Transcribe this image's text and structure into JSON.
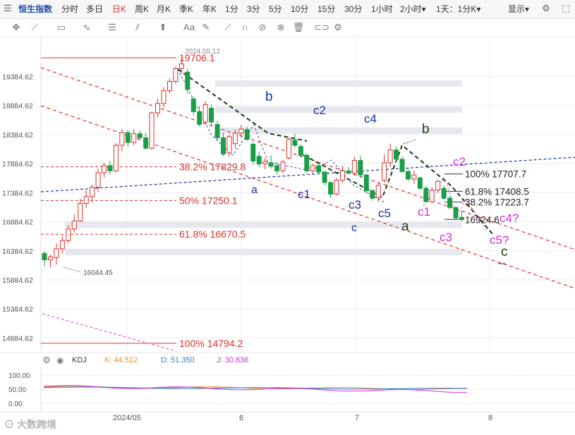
{
  "toolbar": {
    "index_name": "恒生指数",
    "periods": [
      "分时",
      "多日",
      "日K",
      "周K",
      "月K",
      "季K",
      "年K",
      "1分",
      "3分",
      "5分",
      "10分",
      "15分",
      "30分",
      "1小时",
      "2小时▾",
      "1天：1分K▾"
    ],
    "active_period": "日K",
    "display_label": "显示▾",
    "colors": {
      "active": "#d9312a"
    }
  },
  "draw_tools": [
    "crosshair-icon",
    "trendline-icon",
    "rect-tool-icon",
    "wave-tool-icon",
    "text-list-icon",
    "channel-icon",
    "arrow-up-icon",
    "text-aa-icon",
    "pen-icon",
    "magnet-icon",
    "lock-icon",
    "eye-off-icon",
    "trash-icon",
    "link-icon",
    "settings-icon"
  ],
  "draw_tool_glyphs": {
    "aa": "Aa"
  },
  "chart_data": {
    "type": "candlestick",
    "ylim": [
      14634.62,
      20070
    ],
    "y_ticks": [
      "19384.62",
      "18884.62",
      "18384.62",
      "17884.62",
      "17384.62",
      "16884.62",
      "16384.62",
      "15884.62",
      "15384.62",
      "14884.62"
    ],
    "y_tick_values": [
      19384.62,
      18884.62,
      18384.62,
      17884.62,
      17384.62,
      16884.62,
      16384.62,
      15884.62,
      15384.62,
      14884.62
    ],
    "x_labels": [
      "2024/05",
      "6",
      "7",
      "8"
    ],
    "x_label_index": [
      6,
      18,
      28,
      40
    ],
    "max_label": "19706.1",
    "max_date_label": "2024.05.12",
    "min_label": "16044.45",
    "last_label": "16924.6",
    "candles": [
      {
        "o": 16340,
        "h": 16380,
        "l": 16120,
        "c": 16230
      },
      {
        "o": 16230,
        "h": 16320,
        "l": 16100,
        "c": 16280
      },
      {
        "o": 16270,
        "h": 16510,
        "l": 16150,
        "c": 16420
      },
      {
        "o": 16420,
        "h": 16650,
        "l": 16340,
        "c": 16560
      },
      {
        "o": 16560,
        "h": 16820,
        "l": 16520,
        "c": 16760
      },
      {
        "o": 16760,
        "h": 17010,
        "l": 16700,
        "c": 16900
      },
      {
        "o": 16900,
        "h": 17280,
        "l": 16880,
        "c": 17200
      },
      {
        "o": 17200,
        "h": 17430,
        "l": 17120,
        "c": 17320
      },
      {
        "o": 17320,
        "h": 17520,
        "l": 17220,
        "c": 17480
      },
      {
        "o": 17480,
        "h": 17800,
        "l": 17400,
        "c": 17730
      },
      {
        "o": 17730,
        "h": 17900,
        "l": 17650,
        "c": 17850
      },
      {
        "o": 17850,
        "h": 17930,
        "l": 17700,
        "c": 17760
      },
      {
        "o": 17760,
        "h": 18240,
        "l": 17740,
        "c": 18200
      },
      {
        "o": 18200,
        "h": 18480,
        "l": 18100,
        "c": 18420
      },
      {
        "o": 18420,
        "h": 18460,
        "l": 18180,
        "c": 18250
      },
      {
        "o": 18250,
        "h": 18480,
        "l": 18200,
        "c": 18400
      },
      {
        "o": 18400,
        "h": 18460,
        "l": 18280,
        "c": 18330
      },
      {
        "o": 18330,
        "h": 18420,
        "l": 18130,
        "c": 18150
      },
      {
        "o": 18150,
        "h": 18780,
        "l": 18120,
        "c": 18760
      },
      {
        "o": 18760,
        "h": 19000,
        "l": 18680,
        "c": 18920
      },
      {
        "o": 18920,
        "h": 19200,
        "l": 18850,
        "c": 19140
      },
      {
        "o": 19140,
        "h": 19350,
        "l": 19090,
        "c": 19300
      },
      {
        "o": 19300,
        "h": 19560,
        "l": 19260,
        "c": 19520
      },
      {
        "o": 19520,
        "h": 19706,
        "l": 19430,
        "c": 19600
      },
      {
        "o": 19460,
        "h": 19520,
        "l": 19090,
        "c": 19160
      },
      {
        "o": 19000,
        "h": 19040,
        "l": 18720,
        "c": 18780
      },
      {
        "o": 18780,
        "h": 18880,
        "l": 18520,
        "c": 18560
      },
      {
        "o": 18600,
        "h": 18960,
        "l": 18560,
        "c": 18900
      },
      {
        "o": 18840,
        "h": 18900,
        "l": 18540,
        "c": 18600
      },
      {
        "o": 18560,
        "h": 18620,
        "l": 18280,
        "c": 18330
      },
      {
        "o": 18330,
        "h": 18420,
        "l": 18010,
        "c": 18050
      },
      {
        "o": 18070,
        "h": 18390,
        "l": 18000,
        "c": 18350
      },
      {
        "o": 18230,
        "h": 18470,
        "l": 18150,
        "c": 18410
      },
      {
        "o": 18410,
        "h": 18550,
        "l": 18330,
        "c": 18480
      },
      {
        "o": 18470,
        "h": 18520,
        "l": 18280,
        "c": 18300
      },
      {
        "o": 18220,
        "h": 18260,
        "l": 17870,
        "c": 17930
      },
      {
        "o": 18010,
        "h": 18090,
        "l": 17820,
        "c": 17880
      },
      {
        "o": 17880,
        "h": 17980,
        "l": 17790,
        "c": 17920
      },
      {
        "o": 17900,
        "h": 18030,
        "l": 17800,
        "c": 17840
      },
      {
        "o": 17850,
        "h": 17920,
        "l": 17700,
        "c": 17760
      },
      {
        "o": 17760,
        "h": 17950,
        "l": 17720,
        "c": 17910
      },
      {
        "o": 17980,
        "h": 18330,
        "l": 17960,
        "c": 18300
      },
      {
        "o": 18290,
        "h": 18400,
        "l": 18160,
        "c": 18200
      },
      {
        "o": 18180,
        "h": 18210,
        "l": 17990,
        "c": 18030
      },
      {
        "o": 18030,
        "h": 18060,
        "l": 17720,
        "c": 17760
      },
      {
        "o": 17760,
        "h": 17880,
        "l": 17700,
        "c": 17850
      },
      {
        "o": 17850,
        "h": 17900,
        "l": 17700,
        "c": 17740
      },
      {
        "o": 17740,
        "h": 17770,
        "l": 17510,
        "c": 17560
      },
      {
        "o": 17560,
        "h": 17580,
        "l": 17300,
        "c": 17360
      },
      {
        "o": 17360,
        "h": 17640,
        "l": 17340,
        "c": 17600
      },
      {
        "o": 17600,
        "h": 17850,
        "l": 17560,
        "c": 17760
      },
      {
        "o": 17760,
        "h": 17830,
        "l": 17700,
        "c": 17720
      },
      {
        "o": 17720,
        "h": 18000,
        "l": 17680,
        "c": 17940
      },
      {
        "o": 17940,
        "h": 18020,
        "l": 17640,
        "c": 17690
      },
      {
        "o": 17690,
        "h": 17710,
        "l": 17370,
        "c": 17420
      },
      {
        "o": 17420,
        "h": 17450,
        "l": 17250,
        "c": 17290
      },
      {
        "o": 17300,
        "h": 17560,
        "l": 17230,
        "c": 17510
      },
      {
        "o": 17600,
        "h": 18050,
        "l": 17560,
        "c": 17900
      },
      {
        "o": 17900,
        "h": 18230,
        "l": 17830,
        "c": 18120
      },
      {
        "o": 18120,
        "h": 18180,
        "l": 17900,
        "c": 17960
      },
      {
        "o": 17960,
        "h": 18010,
        "l": 17720,
        "c": 17750
      },
      {
        "o": 17750,
        "h": 17800,
        "l": 17590,
        "c": 17620
      },
      {
        "o": 17620,
        "h": 17760,
        "l": 17540,
        "c": 17690
      },
      {
        "o": 17640,
        "h": 17660,
        "l": 17430,
        "c": 17460
      },
      {
        "o": 17460,
        "h": 17500,
        "l": 17210,
        "c": 17230
      },
      {
        "o": 17230,
        "h": 17480,
        "l": 17200,
        "c": 17430
      },
      {
        "o": 17430,
        "h": 17610,
        "l": 17380,
        "c": 17580
      },
      {
        "o": 17460,
        "h": 17510,
        "l": 17260,
        "c": 17290
      },
      {
        "o": 17290,
        "h": 17330,
        "l": 17100,
        "c": 17130
      },
      {
        "o": 17130,
        "h": 17150,
        "l": 16930,
        "c": 16950
      },
      {
        "o": 16960,
        "h": 17080,
        "l": 16900,
        "c": 16925
      }
    ],
    "fib_left": [
      {
        "label": "19706.1",
        "value": 19706.1,
        "style": "solid"
      },
      {
        "label": "38.2% 17829.8",
        "value": 17829.8,
        "style": "dash"
      },
      {
        "label": "50% 17250.1",
        "value": 17250.1,
        "style": "dash"
      },
      {
        "label": "61.8% 16670.5",
        "value": 16670.5,
        "style": "dash"
      },
      {
        "label": "100% 14794.2",
        "value": 14794.2,
        "style": "solid"
      }
    ],
    "fib_right": [
      {
        "label": "100% 17707.7",
        "value": 17707.7
      },
      {
        "label": "61.8% 17408.5",
        "value": 17408.5
      },
      {
        "label": "38.2% 17223.7",
        "value": 17223.7
      },
      {
        "label": "16924.6",
        "value": 16924.6
      }
    ],
    "zones": [
      19270,
      18820,
      18460,
      16840,
      16370
    ],
    "wave_labels": [
      {
        "text": "b",
        "color": "#1f2fa6"
      },
      {
        "text": "c2",
        "color": "#1f2fa6"
      },
      {
        "text": "c4",
        "color": "#1f2fa6"
      },
      {
        "text": "b",
        "color": "#1d3a12"
      },
      {
        "text": "a",
        "color": "#1f2fa6"
      },
      {
        "text": "c1",
        "color": "#1f2fa6"
      },
      {
        "text": "c3",
        "color": "#1f2fa6"
      },
      {
        "text": "c5",
        "color": "#1f2fa6"
      },
      {
        "text": "c",
        "color": "#1f2fa6"
      },
      {
        "text": "a",
        "color": "#1d3a12"
      },
      {
        "text": "c1",
        "color": "#d62bd6"
      },
      {
        "text": "c2",
        "color": "#d62bd6"
      },
      {
        "text": "c3",
        "color": "#d62bd6"
      },
      {
        "text": "c4?",
        "color": "#d62bd6"
      },
      {
        "text": "c5?",
        "color": "#d62bd6"
      },
      {
        "text": "c",
        "color": "#1d3a12"
      }
    ],
    "colors": {
      "up": "#d9312a",
      "down": "#1a9e48",
      "fib": "#d9312a",
      "channel_red": "#d9312a",
      "blue_dash": "#1f2fa6",
      "magenta": "#e23fd8",
      "zone": "#e6e8ee",
      "axis_text": "#555555",
      "grid": "#eeeeee"
    }
  },
  "kdj": {
    "name": "KDJ",
    "k_label": "K: 44.512",
    "d_label": "D: 51.350",
    "j_label": "J: 30.836",
    "k_color": "#f08c1c",
    "d_color": "#1f7fd6",
    "j_color": "#d62bd6",
    "y_ticks": [
      "100.00",
      "50.00",
      "0.00"
    ],
    "ylim": [
      -10,
      110
    ]
  },
  "watermark": "大数跨境"
}
